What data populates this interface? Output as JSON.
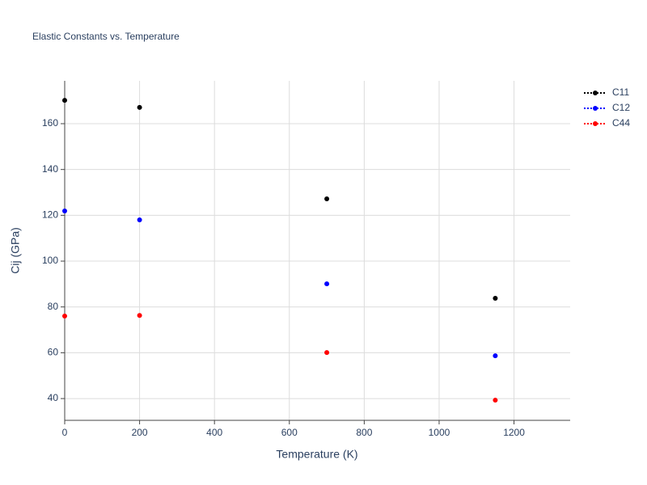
{
  "chart_data": {
    "type": "scatter",
    "title": "Elastic Constants vs. Temperature",
    "x_label": "Temperature (K)",
    "y_label": "Cij (GPa)",
    "x": [
      0,
      200,
      700,
      1150
    ],
    "series": [
      {
        "name": "C11",
        "color": "#000000",
        "values": [
          170.2,
          167.1,
          127.2,
          83.8
        ]
      },
      {
        "name": "C12",
        "color": "#0000ff",
        "values": [
          121.9,
          118,
          90.1,
          58.7
        ]
      },
      {
        "name": "C44",
        "color": "#ff0000",
        "values": [
          76,
          76.3,
          60.1,
          39.3
        ]
      }
    ],
    "xlim": [
      0,
      1350
    ],
    "ylim": [
      30.5,
      178.7
    ],
    "xticks": [
      0,
      200,
      400,
      600,
      800,
      1000,
      1200
    ],
    "yticks": [
      40,
      60,
      80,
      100,
      120,
      140,
      160
    ],
    "grid": true,
    "legend": "top-right"
  }
}
